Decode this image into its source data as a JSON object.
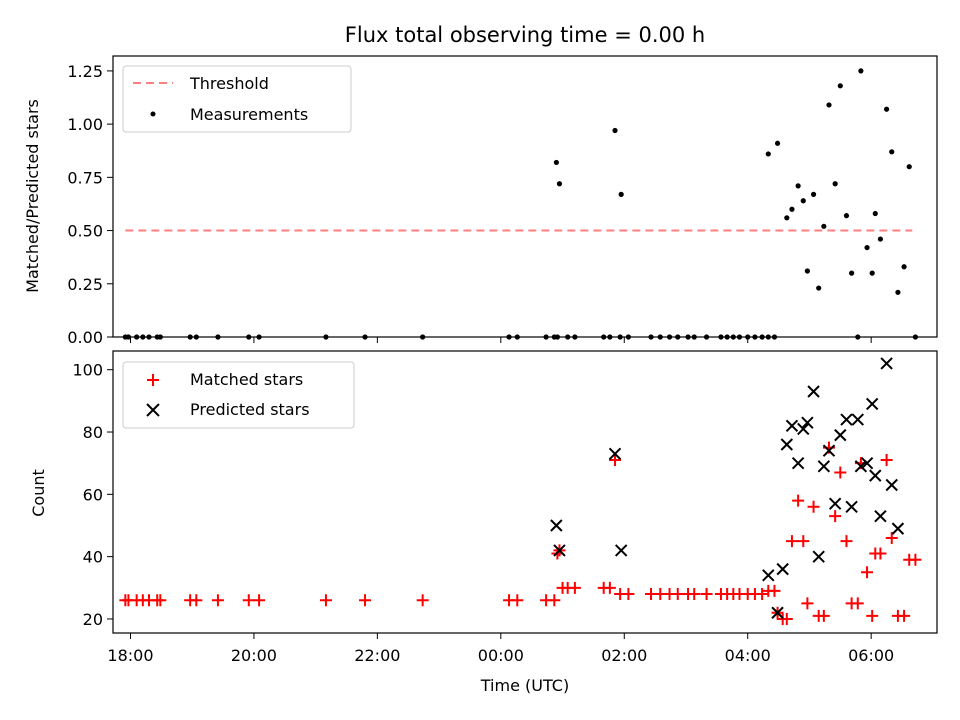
{
  "title": "Flux total observing time = 0.00 h",
  "chart_data": [
    {
      "type": "scatter",
      "ylabel": "Matched/Predicted stars",
      "xlim": [
        "17:43",
        "07:04"
      ],
      "ylim": [
        0,
        1.32
      ],
      "yticks": [
        0.0,
        0.25,
        0.5,
        0.75,
        1.0,
        1.25
      ],
      "ytick_labels": [
        "0.00",
        "0.25",
        "0.50",
        "0.75",
        "1.00",
        "1.25"
      ],
      "legend_position": "top-left",
      "legend": [
        {
          "label": "Threshold",
          "style": "dashed-line",
          "color": "#ff7f7f"
        },
        {
          "label": "Measurements",
          "style": "dot",
          "color": "#000000"
        }
      ],
      "threshold": {
        "name": "Threshold",
        "y": 0.5,
        "x_start": "17:55",
        "x_end": "06:40",
        "color": "#ff7f7f"
      },
      "series": [
        {
          "name": "Measurements",
          "color": "#000000",
          "points": [
            [
              "17:55",
              0
            ],
            [
              "17:58",
              0
            ],
            [
              "18:06",
              0
            ],
            [
              "18:12",
              0
            ],
            [
              "18:18",
              0
            ],
            [
              "18:26",
              0
            ],
            [
              "18:29",
              0
            ],
            [
              "18:58",
              0
            ],
            [
              "19:04",
              0
            ],
            [
              "19:25",
              0
            ],
            [
              "19:55",
              0
            ],
            [
              "20:05",
              0
            ],
            [
              "21:10",
              0
            ],
            [
              "21:48",
              0
            ],
            [
              "22:44",
              0
            ],
            [
              "00:08",
              0
            ],
            [
              "00:16",
              0
            ],
            [
              "00:44",
              0
            ],
            [
              "00:52",
              0
            ],
            [
              "00:55",
              0
            ],
            [
              "01:05",
              0
            ],
            [
              "01:12",
              0
            ],
            [
              "01:40",
              0
            ],
            [
              "01:46",
              0
            ],
            [
              "01:56",
              0
            ],
            [
              "02:04",
              0
            ],
            [
              "00:54",
              0.82
            ],
            [
              "00:57",
              0.72
            ],
            [
              "01:51",
              0.97
            ],
            [
              "01:57",
              0.67
            ],
            [
              "02:26",
              0
            ],
            [
              "02:35",
              0
            ],
            [
              "02:44",
              0
            ],
            [
              "02:52",
              0
            ],
            [
              "03:02",
              0
            ],
            [
              "03:08",
              0
            ],
            [
              "03:20",
              0
            ],
            [
              "03:34",
              0
            ],
            [
              "03:40",
              0
            ],
            [
              "03:46",
              0
            ],
            [
              "03:52",
              0
            ],
            [
              "04:00",
              0
            ],
            [
              "04:07",
              0
            ],
            [
              "04:14",
              0
            ],
            [
              "04:20",
              0
            ],
            [
              "04:26",
              0
            ],
            [
              "04:20",
              0.86
            ],
            [
              "04:29",
              0.91
            ],
            [
              "04:38",
              0.56
            ],
            [
              "04:43",
              0.6
            ],
            [
              "04:49",
              0.71
            ],
            [
              "04:54",
              0.64
            ],
            [
              "04:58",
              0.31
            ],
            [
              "05:04",
              0.67
            ],
            [
              "05:09",
              0.23
            ],
            [
              "05:14",
              0.52
            ],
            [
              "05:19",
              1.09
            ],
            [
              "05:25",
              0.72
            ],
            [
              "05:30",
              1.18
            ],
            [
              "05:36",
              0.57
            ],
            [
              "05:41",
              0.3
            ],
            [
              "05:47",
              0
            ],
            [
              "05:50",
              1.25
            ],
            [
              "05:56",
              0.42
            ],
            [
              "06:01",
              0.3
            ],
            [
              "06:04",
              0.58
            ],
            [
              "06:09",
              0.46
            ],
            [
              "06:15",
              1.07
            ],
            [
              "06:20",
              0.87
            ],
            [
              "06:26",
              0.21
            ],
            [
              "06:32",
              0.33
            ],
            [
              "06:37",
              0.8
            ],
            [
              "06:43",
              0
            ]
          ]
        }
      ]
    },
    {
      "type": "scatter",
      "xlabel": "Time (UTC)",
      "ylabel": "Count",
      "xlim": [
        "17:43",
        "07:04"
      ],
      "ylim": [
        15.5,
        106
      ],
      "xticks": [
        "18:00",
        "20:00",
        "22:00",
        "00:00",
        "02:00",
        "04:00",
        "06:00"
      ],
      "yticks": [
        20,
        40,
        60,
        80,
        100
      ],
      "legend_position": "top-left",
      "legend": [
        {
          "label": "Matched stars",
          "marker": "+",
          "color": "#ff0000"
        },
        {
          "label": "Predicted stars",
          "marker": "x",
          "color": "#000000"
        }
      ],
      "series": [
        {
          "name": "Matched stars",
          "marker": "+",
          "color": "#ff0000",
          "points": [
            [
              "17:55",
              26
            ],
            [
              "17:58",
              26
            ],
            [
              "18:06",
              26
            ],
            [
              "18:12",
              26
            ],
            [
              "18:18",
              26
            ],
            [
              "18:26",
              26
            ],
            [
              "18:29",
              26
            ],
            [
              "18:58",
              26
            ],
            [
              "19:04",
              26
            ],
            [
              "19:25",
              26
            ],
            [
              "19:55",
              26
            ],
            [
              "20:05",
              26
            ],
            [
              "21:10",
              26
            ],
            [
              "21:48",
              26
            ],
            [
              "22:44",
              26
            ],
            [
              "00:08",
              26
            ],
            [
              "00:16",
              26
            ],
            [
              "00:44",
              26
            ],
            [
              "00:52",
              26
            ],
            [
              "00:55",
              41
            ],
            [
              "00:57",
              42
            ],
            [
              "01:00",
              30
            ],
            [
              "01:05",
              30
            ],
            [
              "01:12",
              30
            ],
            [
              "01:40",
              30
            ],
            [
              "01:46",
              30
            ],
            [
              "01:51",
              71
            ],
            [
              "01:56",
              28
            ],
            [
              "02:04",
              28
            ],
            [
              "02:26",
              28
            ],
            [
              "02:35",
              28
            ],
            [
              "02:44",
              28
            ],
            [
              "02:52",
              28
            ],
            [
              "03:02",
              28
            ],
            [
              "03:08",
              28
            ],
            [
              "03:20",
              28
            ],
            [
              "03:34",
              28
            ],
            [
              "03:40",
              28
            ],
            [
              "03:46",
              28
            ],
            [
              "03:52",
              28
            ],
            [
              "04:00",
              28
            ],
            [
              "04:07",
              28
            ],
            [
              "04:14",
              28
            ],
            [
              "04:20",
              29
            ],
            [
              "04:26",
              29
            ],
            [
              "04:29",
              22
            ],
            [
              "04:34",
              20
            ],
            [
              "04:38",
              20
            ],
            [
              "04:43",
              45
            ],
            [
              "04:49",
              58
            ],
            [
              "04:54",
              45
            ],
            [
              "04:58",
              25
            ],
            [
              "05:04",
              56
            ],
            [
              "05:09",
              21
            ],
            [
              "05:14",
              21
            ],
            [
              "05:19",
              75
            ],
            [
              "05:25",
              53
            ],
            [
              "05:30",
              67
            ],
            [
              "05:36",
              45
            ],
            [
              "05:41",
              25
            ],
            [
              "05:47",
              25
            ],
            [
              "05:50",
              70
            ],
            [
              "05:56",
              35
            ],
            [
              "06:01",
              21
            ],
            [
              "06:04",
              41
            ],
            [
              "06:09",
              41
            ],
            [
              "06:15",
              71
            ],
            [
              "06:20",
              46
            ],
            [
              "06:26",
              21
            ],
            [
              "06:32",
              21
            ],
            [
              "06:37",
              39
            ],
            [
              "06:43",
              39
            ]
          ]
        },
        {
          "name": "Predicted stars",
          "marker": "x",
          "color": "#000000",
          "points": [
            [
              "00:54",
              50
            ],
            [
              "00:57",
              42
            ],
            [
              "01:51",
              73
            ],
            [
              "01:57",
              42
            ],
            [
              "04:20",
              34
            ],
            [
              "04:29",
              22
            ],
            [
              "04:34",
              36
            ],
            [
              "04:38",
              76
            ],
            [
              "04:43",
              82
            ],
            [
              "04:49",
              70
            ],
            [
              "04:54",
              81
            ],
            [
              "04:58",
              83
            ],
            [
              "05:04",
              93
            ],
            [
              "05:09",
              40
            ],
            [
              "05:14",
              69
            ],
            [
              "05:19",
              74
            ],
            [
              "05:25",
              57
            ],
            [
              "05:30",
              79
            ],
            [
              "05:36",
              84
            ],
            [
              "05:41",
              56
            ],
            [
              "05:47",
              84
            ],
            [
              "05:50",
              69
            ],
            [
              "05:56",
              70
            ],
            [
              "06:01",
              89
            ],
            [
              "06:04",
              66
            ],
            [
              "06:09",
              53
            ],
            [
              "06:15",
              102
            ],
            [
              "06:20",
              63
            ],
            [
              "06:26",
              49
            ]
          ]
        }
      ]
    }
  ]
}
